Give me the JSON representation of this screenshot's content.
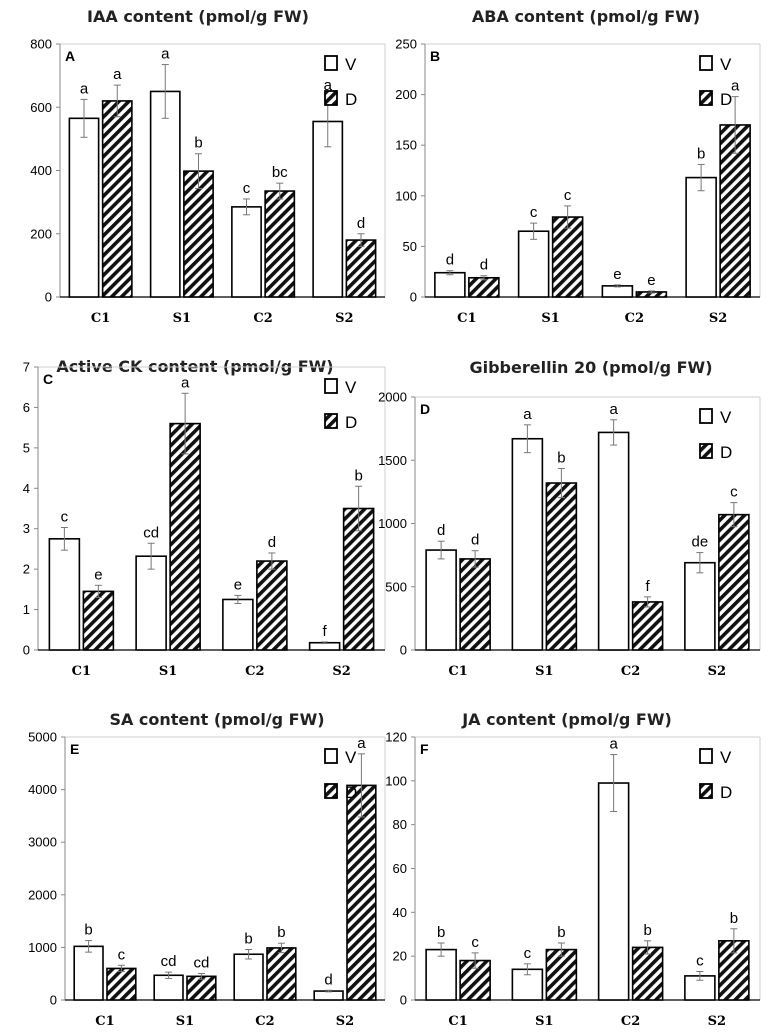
{
  "chart_data": [
    {
      "type": "bar",
      "panel_label": "A",
      "title": "IAA content (pmol/g FW)",
      "categories": [
        "C1",
        "S1",
        "C2",
        "S2"
      ],
      "ylim": [
        0,
        800
      ],
      "yticks": [
        0,
        200,
        400,
        600,
        800
      ],
      "ytick_labels": [
        "0",
        "200",
        "400",
        "600",
        "800"
      ],
      "legend_position": "top-right",
      "series": [
        {
          "name": "V",
          "pattern": "open",
          "values": [
            565,
            650,
            285,
            555
          ],
          "errors": [
            60,
            85,
            25,
            80
          ],
          "letters": [
            "a",
            "a",
            "c",
            "a"
          ]
        },
        {
          "name": "D",
          "pattern": "hatched",
          "values": [
            620,
            398,
            335,
            180
          ],
          "errors": [
            50,
            55,
            25,
            20
          ],
          "letters": [
            "a",
            "b",
            "bc",
            "d"
          ]
        }
      ]
    },
    {
      "type": "bar",
      "panel_label": "B",
      "title": "ABA content (pmol/g FW)",
      "categories": [
        "C1",
        "S1",
        "C2",
        "S2"
      ],
      "ylim": [
        0,
        250
      ],
      "yticks": [
        0,
        50,
        100,
        150,
        200,
        250
      ],
      "ytick_labels": [
        "0",
        "50",
        "100",
        "150",
        "200",
        "250"
      ],
      "legend_position": "top-right",
      "series": [
        {
          "name": "V",
          "pattern": "open",
          "values": [
            24,
            65,
            11,
            118
          ],
          "errors": [
            2,
            8,
            1,
            13
          ],
          "letters": [
            "d",
            "c",
            "e",
            "b"
          ]
        },
        {
          "name": "D",
          "pattern": "hatched",
          "values": [
            19,
            79,
            5,
            170
          ],
          "errors": [
            2,
            11,
            1,
            28
          ],
          "letters": [
            "d",
            "c",
            "e",
            "a"
          ]
        }
      ]
    },
    {
      "type": "bar",
      "panel_label": "C",
      "title": "Active CK content (pmol/g FW)",
      "categories": [
        "C1",
        "S1",
        "C2",
        "S2"
      ],
      "ylim": [
        0,
        7
      ],
      "yticks": [
        0,
        1,
        2,
        3,
        4,
        5,
        6,
        7
      ],
      "ytick_labels": [
        "0",
        "1",
        "2",
        "3",
        "4",
        "5",
        "6",
        "7"
      ],
      "legend_position": "top-right",
      "series": [
        {
          "name": "V",
          "pattern": "open",
          "values": [
            2.75,
            2.32,
            1.25,
            0.18
          ],
          "errors": [
            0.28,
            0.32,
            0.1,
            0.02
          ],
          "letters": [
            "c",
            "cd",
            "e",
            "f"
          ]
        },
        {
          "name": "D",
          "pattern": "hatched",
          "values": [
            1.45,
            5.6,
            2.2,
            3.5
          ],
          "errors": [
            0.15,
            0.75,
            0.2,
            0.55
          ],
          "letters": [
            "e",
            "a",
            "d",
            "b"
          ]
        }
      ]
    },
    {
      "type": "bar",
      "panel_label": "D",
      "title": "Gibberellin 20 (pmol/g FW)",
      "categories": [
        "C1",
        "S1",
        "C2",
        "S2"
      ],
      "ylim": [
        0,
        2000
      ],
      "yticks": [
        0,
        500,
        1000,
        1500,
        2000
      ],
      "ytick_labels": [
        "0",
        "500",
        "1000",
        "1500",
        "2000"
      ],
      "legend_position": "top-right",
      "series": [
        {
          "name": "V",
          "pattern": "open",
          "values": [
            790,
            1670,
            1720,
            690
          ],
          "errors": [
            70,
            110,
            100,
            80
          ],
          "letters": [
            "d",
            "a",
            "a",
            "de"
          ]
        },
        {
          "name": "D",
          "pattern": "hatched",
          "values": [
            720,
            1320,
            380,
            1070
          ],
          "errors": [
            65,
            115,
            40,
            95
          ],
          "letters": [
            "d",
            "b",
            "f",
            "c"
          ]
        }
      ]
    },
    {
      "type": "bar",
      "panel_label": "E",
      "title": "SA content (pmol/g FW)",
      "categories": [
        "C1",
        "S1",
        "C2",
        "S2"
      ],
      "ylim": [
        0,
        5000
      ],
      "yticks": [
        0,
        1000,
        2000,
        3000,
        4000,
        5000
      ],
      "ytick_labels": [
        "0",
        "1000",
        "2000",
        "3000",
        "4000",
        "5000"
      ],
      "legend_position": "top-right",
      "series": [
        {
          "name": "V",
          "pattern": "open",
          "values": [
            1020,
            470,
            870,
            170
          ],
          "errors": [
            110,
            60,
            90,
            15
          ],
          "letters": [
            "b",
            "cd",
            "b",
            "d"
          ]
        },
        {
          "name": "D",
          "pattern": "hatched",
          "values": [
            600,
            450,
            990,
            4080
          ],
          "errors": [
            60,
            55,
            90,
            600
          ],
          "letters": [
            "c",
            "cd",
            "b",
            "a"
          ]
        }
      ]
    },
    {
      "type": "bar",
      "panel_label": "F",
      "title": "JA content (pmol/g FW)",
      "categories": [
        "C1",
        "S1",
        "C2",
        "S2"
      ],
      "ylim": [
        0,
        120
      ],
      "yticks": [
        0,
        20,
        40,
        60,
        80,
        100,
        120
      ],
      "ytick_labels": [
        "0",
        "20",
        "40",
        "60",
        "80",
        "100",
        "120"
      ],
      "legend_position": "top-right",
      "series": [
        {
          "name": "V",
          "pattern": "open",
          "values": [
            23,
            14,
            99,
            11
          ],
          "errors": [
            3,
            2.5,
            13,
            2
          ],
          "letters": [
            "b",
            "c",
            "a",
            "c"
          ]
        },
        {
          "name": "D",
          "pattern": "hatched",
          "values": [
            18,
            23,
            24,
            27
          ],
          "errors": [
            3.5,
            3,
            3,
            5.5
          ],
          "letters": [
            "c",
            "b",
            "b",
            "b"
          ]
        }
      ]
    }
  ]
}
